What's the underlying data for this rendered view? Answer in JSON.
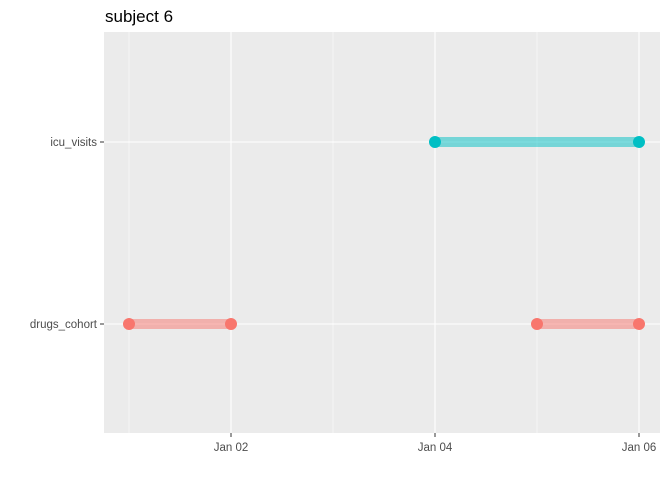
{
  "chart_data": {
    "type": "timeline",
    "title": "subject 6",
    "xlabel": "",
    "ylabel": "",
    "x_ticks": [
      "Jan 02",
      "Jan 04",
      "Jan 06"
    ],
    "y_categories": [
      "drugs_cohort",
      "icu_visits"
    ],
    "xlim": [
      "2021-01-01",
      "2021-01-06"
    ],
    "grid": true,
    "legend": "none",
    "segments": [
      {
        "category": "drugs_cohort",
        "start": "2021-01-01",
        "end": "2021-01-02"
      },
      {
        "category": "drugs_cohort",
        "start": "2021-01-05",
        "end": "2021-01-06"
      },
      {
        "category": "icu_visits",
        "start": "2021-01-04",
        "end": "2021-01-06"
      }
    ],
    "colors": {
      "drugs_cohort": "#F8766D",
      "icu_visits": "#00BFC4",
      "panel": "#EBEBEB",
      "grid": "#FFFFFF"
    }
  }
}
